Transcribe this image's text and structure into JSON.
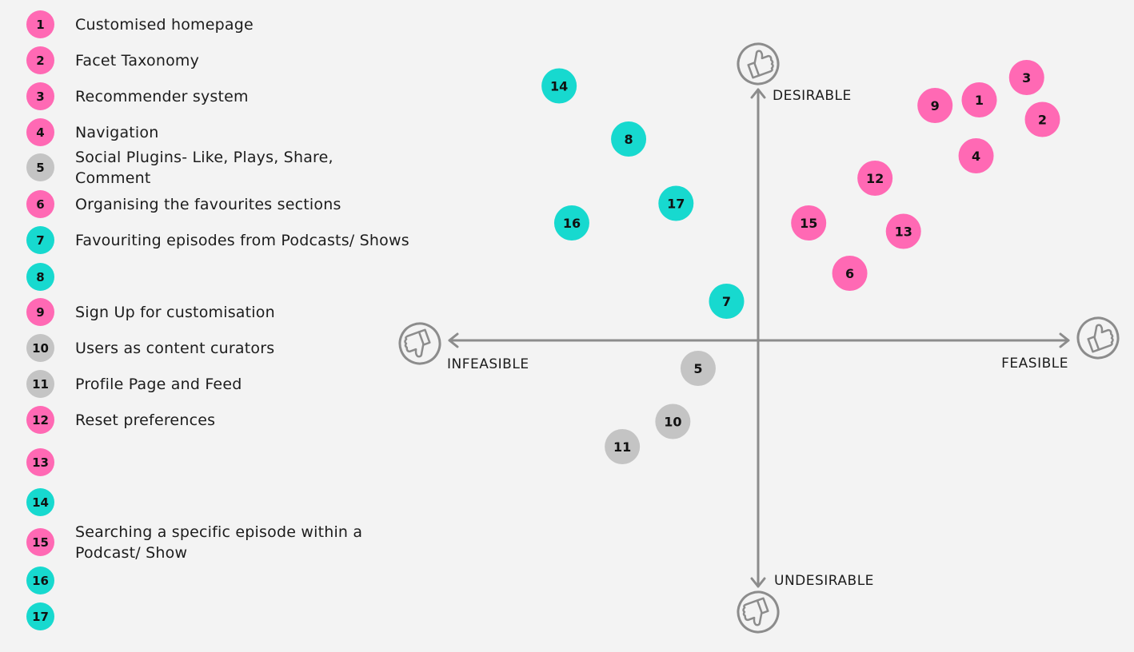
{
  "colors": {
    "pink": "#ff69b4",
    "teal": "#17d9cf",
    "grey": "#c4c4c4",
    "axis": "#8c8c8c",
    "background": "#f3f3f3"
  },
  "legend": [
    {
      "num": "1",
      "color": "pink",
      "label": "Customised homepage"
    },
    {
      "num": "2",
      "color": "pink",
      "label": "Facet Taxonomy"
    },
    {
      "num": "3",
      "color": "pink",
      "label": "Recommender system"
    },
    {
      "num": "4",
      "color": "pink",
      "label": "Navigation"
    },
    {
      "num": "5",
      "color": "grey",
      "label": "Social Plugins- Like, Plays, Share, Comment"
    },
    {
      "num": "6",
      "color": "pink",
      "label": "Organising the favourites sections"
    },
    {
      "num": "7",
      "color": "teal",
      "label": "Favouriting episodes from Podcasts/ Shows"
    },
    {
      "num": "8",
      "color": "teal",
      "label": ""
    },
    {
      "num": "9",
      "color": "pink",
      "label": "Sign Up for customisation"
    },
    {
      "num": "10",
      "color": "grey",
      "label": "Users as content curators"
    },
    {
      "num": "11",
      "color": "grey",
      "label": "Profile Page and Feed"
    },
    {
      "num": "12",
      "color": "pink",
      "label": "Reset preferences"
    },
    {
      "num": "13",
      "color": "pink",
      "label": ""
    },
    {
      "num": "14",
      "color": "teal",
      "label": ""
    },
    {
      "num": "15",
      "color": "pink",
      "label": "Searching a specific episode within  a Podcast/ Show"
    },
    {
      "num": "16",
      "color": "teal",
      "label": ""
    },
    {
      "num": "17",
      "color": "teal",
      "label": ""
    }
  ],
  "axes": {
    "top": "DESIRABLE",
    "bottom": "UNDESIRABLE",
    "left": "INFEASIBLE",
    "right": "FEASIBLE",
    "icons": {
      "top": "thumbs-up-icon",
      "bottom": "thumbs-down-icon",
      "left": "thumbs-down-icon",
      "right": "thumbs-up-icon"
    }
  },
  "chart_data": {
    "type": "scatter",
    "xlabel": "",
    "ylabel": "",
    "xlim": [
      -10,
      10
    ],
    "ylim": [
      -10,
      10
    ],
    "x_negative_label": "INFEASIBLE",
    "x_positive_label": "FEASIBLE",
    "y_positive_label": "DESIRABLE",
    "y_negative_label": "UNDESIRABLE",
    "grid": false,
    "points": [
      {
        "id": "1",
        "x": 7.0,
        "y": 8.6,
        "color": "pink"
      },
      {
        "id": "2",
        "x": 9.0,
        "y": 7.9,
        "color": "pink"
      },
      {
        "id": "3",
        "x": 8.5,
        "y": 9.4,
        "color": "pink"
      },
      {
        "id": "4",
        "x": 6.9,
        "y": 6.6,
        "color": "pink"
      },
      {
        "id": "5",
        "x": -1.9,
        "y": -1.0,
        "color": "grey"
      },
      {
        "id": "6",
        "x": 2.9,
        "y": 2.4,
        "color": "pink"
      },
      {
        "id": "7",
        "x": -1.0,
        "y": 1.4,
        "color": "teal"
      },
      {
        "id": "8",
        "x": -4.1,
        "y": 7.2,
        "color": "teal"
      },
      {
        "id": "9",
        "x": 5.6,
        "y": 8.4,
        "color": "pink"
      },
      {
        "id": "10",
        "x": -2.7,
        "y": -2.9,
        "color": "grey"
      },
      {
        "id": "11",
        "x": -4.3,
        "y": -3.8,
        "color": "grey"
      },
      {
        "id": "12",
        "x": 3.7,
        "y": 5.8,
        "color": "pink"
      },
      {
        "id": "13",
        "x": 4.6,
        "y": 3.9,
        "color": "pink"
      },
      {
        "id": "14",
        "x": -6.3,
        "y": 9.1,
        "color": "teal"
      },
      {
        "id": "15",
        "x": 1.6,
        "y": 4.2,
        "color": "pink"
      },
      {
        "id": "16",
        "x": -5.9,
        "y": 4.2,
        "color": "teal"
      },
      {
        "id": "17",
        "x": -2.6,
        "y": 4.9,
        "color": "teal"
      }
    ]
  }
}
